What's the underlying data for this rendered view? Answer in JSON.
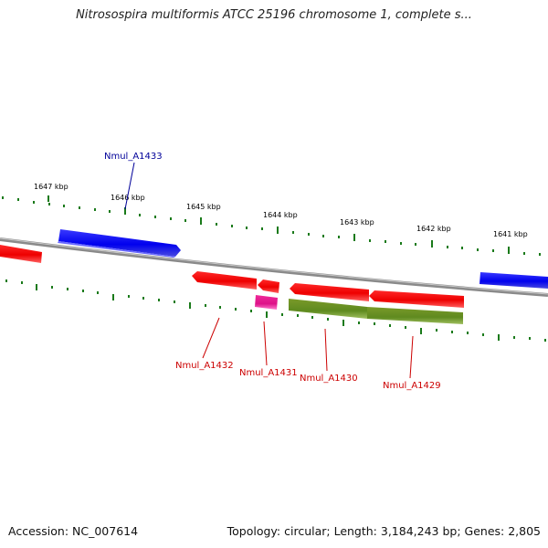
{
  "title": "Nitrosospira multiformis ATCC 25196 chromosome 1, complete s...",
  "footer": {
    "accession": "Accession: NC_007614",
    "summary": "Topology: circular; Length: 3,184,243 bp; Genes: 2,805"
  },
  "colors": {
    "forward_strand": "#0000ee",
    "reverse_strand": "#ee0000",
    "rna_feature": "#e0158a",
    "coding_region": "#6b8e23",
    "scale_ticks": "#1a7a1a",
    "backbone": "#808080",
    "forward_label": "#000099",
    "reverse_label": "#cc0000"
  },
  "scale": {
    "unit": "kbp",
    "ticks": [
      {
        "value": 1647,
        "label": "1647 kbp"
      },
      {
        "value": 1646,
        "label": "1646 kbp"
      },
      {
        "value": 1645,
        "label": "1645 kbp"
      },
      {
        "value": 1644,
        "label": "1644 kbp"
      },
      {
        "value": 1643,
        "label": "1643 kbp"
      },
      {
        "value": 1642,
        "label": "1642 kbp"
      },
      {
        "value": 1641,
        "label": "1641 kbp"
      }
    ]
  },
  "genes": [
    {
      "id": "left-partial-gene",
      "label": "",
      "strand": "reverse",
      "kind": "gene"
    },
    {
      "id": "Nmul_A1433",
      "label": "Nmul_A1433",
      "strand": "forward",
      "kind": "gene"
    },
    {
      "id": "Nmul_A1432",
      "label": "Nmul_A1432",
      "strand": "reverse",
      "kind": "gene"
    },
    {
      "id": "Nmul_A1431",
      "label": "Nmul_A1431",
      "strand": "reverse",
      "kind": "gene"
    },
    {
      "id": "Nmul_A1430",
      "label": "Nmul_A1430",
      "strand": "reverse",
      "kind": "gene"
    },
    {
      "id": "Nmul_A1429",
      "label": "Nmul_A1429",
      "strand": "reverse",
      "kind": "gene"
    },
    {
      "id": "right-partial-gene",
      "label": "",
      "strand": "forward",
      "kind": "gene"
    }
  ]
}
